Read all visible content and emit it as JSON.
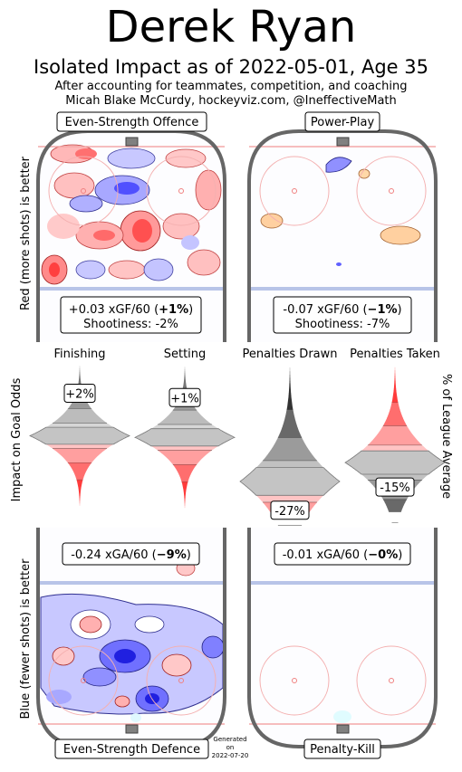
{
  "header": {
    "title": "Derek Ryan",
    "subtitle": "Isolated Impact as of 2022-05-01, Age 35",
    "note_line1": "After accounting for teammates, competition, and coaching",
    "note_line2": "Micah Blake McCurdy, hockeyviz.com, @IneffectiveMath"
  },
  "axis_labels": {
    "offence": "Red (more shots) is better",
    "middle_left": "Impact on Goal Odds",
    "middle_right": "% of League Average",
    "defence": "Blue (fewer shots) is better"
  },
  "panels": {
    "es_offence": {
      "title": "Even-Strength Offence",
      "stat_prefix": "+0.03 xGF/60 (",
      "stat_pct": "+1%",
      "stat_suffix": ")",
      "shootiness": "Shootiness: -2%"
    },
    "power_play": {
      "title": "Power-Play",
      "stat_prefix": "-0.07 xGF/60 (",
      "stat_pct": "−1%",
      "stat_suffix": ")",
      "shootiness": "Shootiness: -7%"
    },
    "es_defence": {
      "title": "Even-Strength Defence",
      "stat_prefix": "-0.24 xGA/60 (",
      "stat_pct": "−9%",
      "stat_suffix": ")"
    },
    "penalty_kill": {
      "title": "Penalty-Kill",
      "stat_prefix": "-0.01 xGA/60 (",
      "stat_pct": "−0%",
      "stat_suffix": ")"
    }
  },
  "chart_data": {
    "type": "violin",
    "categories": [
      "Finishing",
      "Setting",
      "Penalties Drawn",
      "Penalties Taken"
    ],
    "values": [
      2,
      1,
      -27,
      -15
    ],
    "value_labels": [
      "+2%",
      "+1%",
      "-27%",
      "-15%"
    ],
    "unit": "%",
    "colors": {
      "positive_red": "#ff2a2a",
      "neutral_grey": "#b4b4b4",
      "dark_grey": "#2a2a2a",
      "negative_blue": "#3a3aff"
    }
  },
  "footer": {
    "generated_line1": "Generated",
    "generated_line2": "on",
    "generated_line3": "2022-07-20"
  }
}
